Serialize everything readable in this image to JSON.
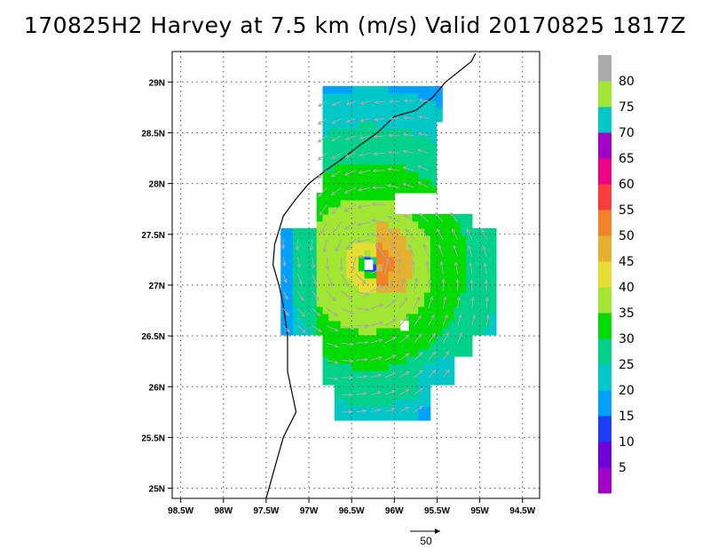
{
  "title": "170825H2 Harvey at 7.5 km (m/s) Valid 20170825 1817Z",
  "map": {
    "lon_min": -98.6,
    "lon_max": -94.3,
    "lat_min": 24.9,
    "lat_max": 29.3,
    "grid": true,
    "lon_ticks": [
      {
        "value": -98.5,
        "label": "98.5W"
      },
      {
        "value": -98.0,
        "label": "98W"
      },
      {
        "value": -97.5,
        "label": "97.5W"
      },
      {
        "value": -97.0,
        "label": "97W"
      },
      {
        "value": -96.5,
        "label": "96.5W"
      },
      {
        "value": -96.0,
        "label": "96W"
      },
      {
        "value": -95.5,
        "label": "95.5W"
      },
      {
        "value": -95.0,
        "label": "95W"
      },
      {
        "value": -94.5,
        "label": "94.5W"
      }
    ],
    "lat_ticks": [
      {
        "value": 29.0,
        "label": "29N"
      },
      {
        "value": 28.5,
        "label": "28.5N"
      },
      {
        "value": 28.0,
        "label": "28N"
      },
      {
        "value": 27.5,
        "label": "27.5N"
      },
      {
        "value": 27.0,
        "label": "27N"
      },
      {
        "value": 26.5,
        "label": "26.5N"
      },
      {
        "value": 26.0,
        "label": "26N"
      },
      {
        "value": 25.5,
        "label": "25.5N"
      },
      {
        "value": 25.0,
        "label": "25N"
      }
    ],
    "storm_center": {
      "lon": -96.3,
      "lat": 27.2
    },
    "coastline": [
      [
        -95.05,
        29.28
      ],
      [
        -95.1,
        29.2
      ],
      [
        -95.4,
        29.0
      ],
      [
        -95.55,
        28.85
      ],
      [
        -95.75,
        28.72
      ],
      [
        -96.0,
        28.66
      ],
      [
        -96.2,
        28.5
      ],
      [
        -96.4,
        28.38
      ],
      [
        -96.6,
        28.25
      ],
      [
        -96.85,
        28.1
      ],
      [
        -97.0,
        28.0
      ],
      [
        -97.15,
        27.85
      ],
      [
        -97.3,
        27.68
      ],
      [
        -97.4,
        27.4
      ],
      [
        -97.42,
        27.2
      ],
      [
        -97.35,
        27.0
      ],
      [
        -97.3,
        26.8
      ],
      [
        -97.25,
        26.5
      ],
      [
        -97.25,
        26.15
      ],
      [
        -97.2,
        25.95
      ],
      [
        -97.15,
        25.75
      ],
      [
        -97.3,
        25.5
      ],
      [
        -97.4,
        25.2
      ],
      [
        -97.5,
        24.9
      ]
    ]
  },
  "colorbar": {
    "bins": [
      {
        "lo": 0,
        "hi": 5,
        "color": "#a000c8"
      },
      {
        "lo": 5,
        "hi": 10,
        "color": "#6e00dc"
      },
      {
        "lo": 10,
        "hi": 15,
        "color": "#1e3cff"
      },
      {
        "lo": 15,
        "hi": 20,
        "color": "#00a0ff"
      },
      {
        "lo": 20,
        "hi": 25,
        "color": "#00c8c8"
      },
      {
        "lo": 25,
        "hi": 30,
        "color": "#00d28c"
      },
      {
        "lo": 30,
        "hi": 35,
        "color": "#00dc00"
      },
      {
        "lo": 35,
        "hi": 40,
        "color": "#a0e632"
      },
      {
        "lo": 40,
        "hi": 45,
        "color": "#e6dc32"
      },
      {
        "lo": 45,
        "hi": 50,
        "color": "#e6af2d"
      },
      {
        "lo": 50,
        "hi": 55,
        "color": "#f08228"
      },
      {
        "lo": 55,
        "hi": 60,
        "color": "#fa3c3c"
      },
      {
        "lo": 60,
        "hi": 65,
        "color": "#f00082"
      },
      {
        "lo": 65,
        "hi": 70,
        "color": "#a000c8"
      },
      {
        "lo": 70,
        "hi": 75,
        "color": "#00c8c8"
      },
      {
        "lo": 75,
        "hi": 80,
        "color": "#a0e632"
      },
      {
        "lo": 80,
        "hi": 85,
        "color": "#aaaaaa"
      }
    ],
    "labels": [
      "5",
      "10",
      "15",
      "20",
      "25",
      "30",
      "35",
      "40",
      "45",
      "50",
      "55",
      "60",
      "65",
      "70",
      "75",
      "80"
    ]
  },
  "reference_vector": {
    "label": "50"
  },
  "colors": {
    "vector": "#aaaaaa",
    "grid": "#555555",
    "coast": "#000000"
  }
}
